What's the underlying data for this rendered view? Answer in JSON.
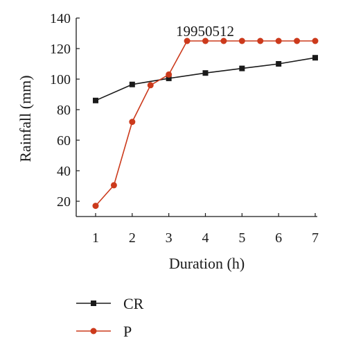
{
  "chart_data": {
    "type": "line",
    "title": "",
    "annotation": "19950512",
    "xlabel": "Duration (h)",
    "ylabel": "Rainfall (mm)",
    "xlim": [
      1,
      7
    ],
    "ylim": [
      10,
      140
    ],
    "x_ticks": [
      1,
      2,
      3,
      4,
      5,
      6,
      7
    ],
    "y_ticks": [
      20,
      40,
      60,
      80,
      100,
      120,
      140
    ],
    "grid": false,
    "legend_position": "bottom-left",
    "series": [
      {
        "name": "CR",
        "color": "#1a1a1a",
        "marker": "square",
        "x": [
          1,
          2,
          3,
          4,
          5,
          6,
          7
        ],
        "y": [
          86,
          96.5,
          100.5,
          104,
          107,
          110,
          114
        ]
      },
      {
        "name": "P",
        "color": "#cc3a1c",
        "marker": "circle",
        "x": [
          1,
          1.5,
          2,
          2.5,
          3,
          3.5,
          4,
          4.5,
          5,
          5.5,
          6,
          6.5,
          7
        ],
        "y": [
          17,
          30.5,
          72,
          96,
          103,
          125,
          125,
          125,
          125,
          125,
          125,
          125,
          125
        ]
      }
    ]
  }
}
